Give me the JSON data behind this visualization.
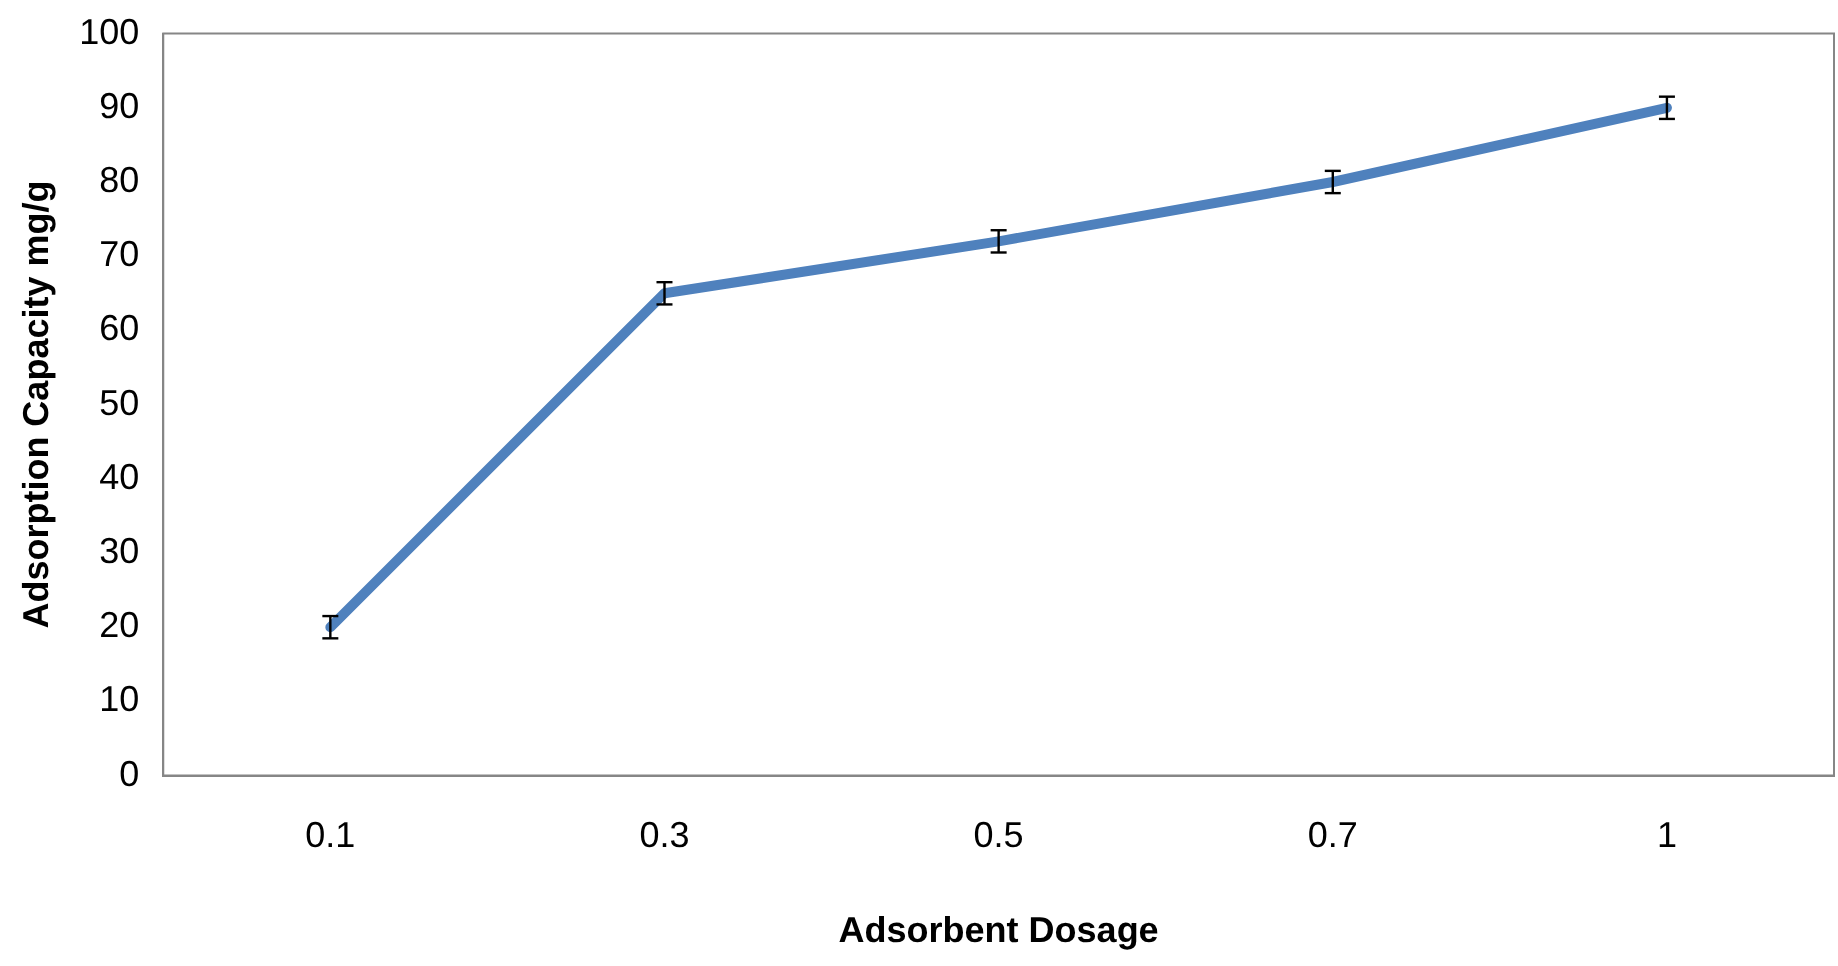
{
  "chart_data": {
    "type": "line",
    "xlabel": "Adsorbent Dosage",
    "ylabel": "Adsorption Capacity mg/g",
    "categories": [
      "0.1",
      "0.3",
      "0.5",
      "0.7",
      "1"
    ],
    "series": [
      {
        "color": "#4f81bd",
        "values": [
          20,
          65,
          72,
          80,
          90
        ],
        "errors": [
          1.5,
          1.5,
          1.5,
          1.5,
          1.5
        ]
      }
    ],
    "ylim": [
      0,
      100
    ],
    "yticks": [
      0,
      10,
      20,
      30,
      40,
      50,
      60,
      70,
      80,
      90,
      100
    ],
    "grid": false,
    "legend": false,
    "marker": "none",
    "line_style": "solid"
  }
}
